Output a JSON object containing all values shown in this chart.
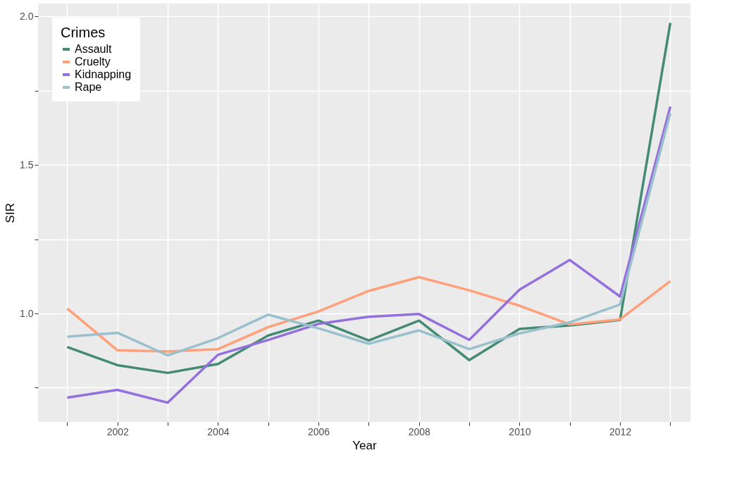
{
  "chart_data": {
    "type": "line",
    "xlabel": "Year",
    "ylabel": "SIR",
    "legend_title": "Crimes",
    "legend": "top left",
    "grid": true,
    "x": [
      2001,
      2002,
      2003,
      2004,
      2005,
      2006,
      2007,
      2008,
      2009,
      2010,
      2011,
      2012,
      2013
    ],
    "xlim": [
      2000.42,
      2013.4
    ],
    "xticks": [
      {
        "value": 2001,
        "label": null
      },
      2002,
      {
        "value": 2003,
        "label": null
      },
      2004,
      {
        "value": 2005,
        "label": null
      },
      2006,
      {
        "value": 2007,
        "label": null
      },
      2008,
      {
        "value": 2009,
        "label": null
      },
      2010,
      {
        "value": 2011,
        "label": null
      },
      2012,
      {
        "value": 2013,
        "label": null
      }
    ],
    "ylim": [
      0.635,
      2.043
    ],
    "yticks": [
      {
        "value": 0.75,
        "label": null
      },
      {
        "value": 1.0,
        "label": "1.0"
      },
      {
        "value": 1.25,
        "label": null
      },
      {
        "value": 1.5,
        "label": "1.5"
      },
      {
        "value": 1.75,
        "label": null
      },
      {
        "value": 2.0,
        "label": "2.0"
      }
    ],
    "series": [
      {
        "name": "Assault",
        "color": "#458b74",
        "values": [
          0.887,
          0.826,
          0.8,
          0.83,
          0.926,
          0.976,
          0.909,
          0.976,
          0.843,
          0.948,
          0.96,
          0.978,
          1.978
        ]
      },
      {
        "name": "Cruelty",
        "color": "#ffa07a",
        "values": [
          1.017,
          0.876,
          0.872,
          0.88,
          0.954,
          1.007,
          1.076,
          1.122,
          1.078,
          1.026,
          0.963,
          0.98,
          1.109
        ]
      },
      {
        "name": "Kidnapping",
        "color": "#9370db",
        "values": [
          0.717,
          0.743,
          0.7,
          0.861,
          0.911,
          0.965,
          0.989,
          0.998,
          0.911,
          1.08,
          1.18,
          1.057,
          1.696
        ]
      },
      {
        "name": "Rape",
        "color": "#9ac0cd",
        "values": [
          0.922,
          0.935,
          0.859,
          0.917,
          0.996,
          0.95,
          0.898,
          0.943,
          0.88,
          0.933,
          0.97,
          1.03,
          1.674
        ]
      }
    ]
  }
}
